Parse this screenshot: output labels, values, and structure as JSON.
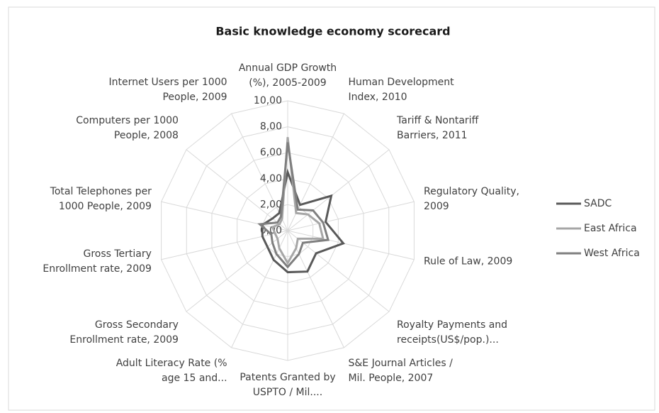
{
  "chart_data": {
    "type": "radar",
    "title": "Basic knowledge economy scorecard",
    "categories": [
      "Annual GDP Growth (%), 2005-2009",
      "Human Development Index, 2010",
      "Tariff & Nontariff Barriers, 2011",
      "Regulatory Quality, 2009",
      "Rule of Law, 2009",
      "Royalty Payments and receipts(US$/pop.)...",
      "S&E Journal Articles / Mil. People, 2007",
      "Patents Granted by USPTO / Mil....",
      "Adult Literacy Rate (% age 15 and...",
      "Gross Secondary Enrollment rate, 2009",
      "Gross Tertiary Enrollment rate, 2009",
      "Total Telephones per 1000 People, 2009",
      "Computers per 1000 People, 2008",
      "Internet Users per 1000 People, 2009"
    ],
    "series": [
      {
        "name": "SADC",
        "color": "#595959",
        "values": [
          4.5,
          2.2,
          4.3,
          3.0,
          4.4,
          2.8,
          3.5,
          3.2,
          2.5,
          2.0,
          2.0,
          2.0,
          1.5,
          1.5
        ]
      },
      {
        "name": "East Africa",
        "color": "#a6a6a6",
        "values": [
          7.2,
          1.5,
          2.0,
          2.5,
          2.8,
          1.0,
          1.5,
          2.5,
          1.5,
          1.0,
          1.0,
          1.2,
          0.8,
          1.0
        ]
      },
      {
        "name": "West Africa",
        "color": "#7f7f7f",
        "values": [
          6.8,
          1.8,
          2.5,
          2.8,
          3.2,
          1.5,
          2.0,
          2.8,
          2.0,
          1.5,
          1.3,
          2.2,
          1.0,
          1.2
        ]
      }
    ],
    "ylim": [
      0,
      10
    ],
    "yticks": [
      {
        "value": 0,
        "label": "0,00"
      },
      {
        "value": 2,
        "label": "2,00"
      },
      {
        "value": 4,
        "label": "4,00"
      },
      {
        "value": 6,
        "label": "6,00"
      },
      {
        "value": 8,
        "label": "8,00"
      },
      {
        "value": 10,
        "label": "10,00"
      }
    ],
    "grid": true,
    "legend": "right"
  }
}
